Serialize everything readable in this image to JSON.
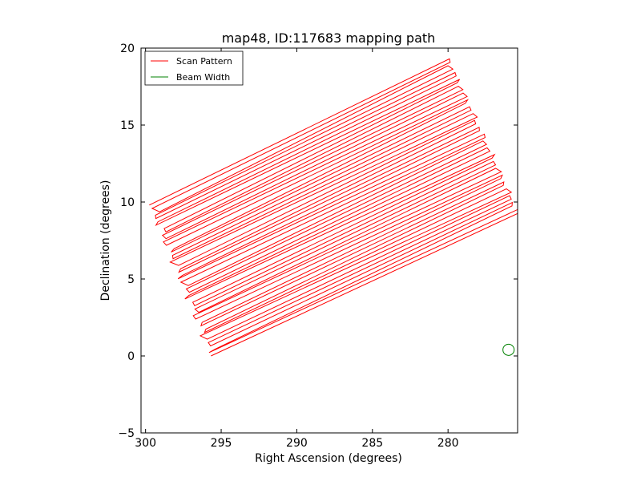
{
  "chart_data": {
    "type": "line",
    "title": "map48, ID:117683 mapping path",
    "xlabel": "Right Ascension (degrees)",
    "ylabel": "Declination (degrees)",
    "xlim": [
      300.3,
      275.4
    ],
    "ylim": [
      -5,
      20
    ],
    "x_ticks": [
      300,
      295,
      290,
      285,
      280
    ],
    "x_tick_labels": [
      "300",
      "295",
      "290",
      "285",
      "280"
    ],
    "y_ticks": [
      -5,
      0,
      5,
      10,
      15,
      20
    ],
    "y_tick_labels": [
      "−5",
      "0",
      "5",
      "10",
      "15",
      "20"
    ],
    "grid": false,
    "legend": {
      "placement": "top-left",
      "entries": [
        "Scan Pattern",
        "Beam Width"
      ]
    },
    "series": [
      {
        "name": "Scan Pattern",
        "color": "#ff0000",
        "pattern": "raster",
        "corners": {
          "start_bottom": [
            295.5,
            0.0
          ],
          "end_bottom": [
            275.4,
            9.3
          ],
          "start_top": [
            299.6,
            9.8
          ],
          "end_top": [
            280.0,
            19.3
          ]
        },
        "legs": 46,
        "wiggle_deg": 0.35
      },
      {
        "name": "Beam Width",
        "color": "#008000",
        "shape": "circle",
        "center": [
          276.0,
          0.4
        ],
        "radius_deg": 0.37
      }
    ]
  }
}
